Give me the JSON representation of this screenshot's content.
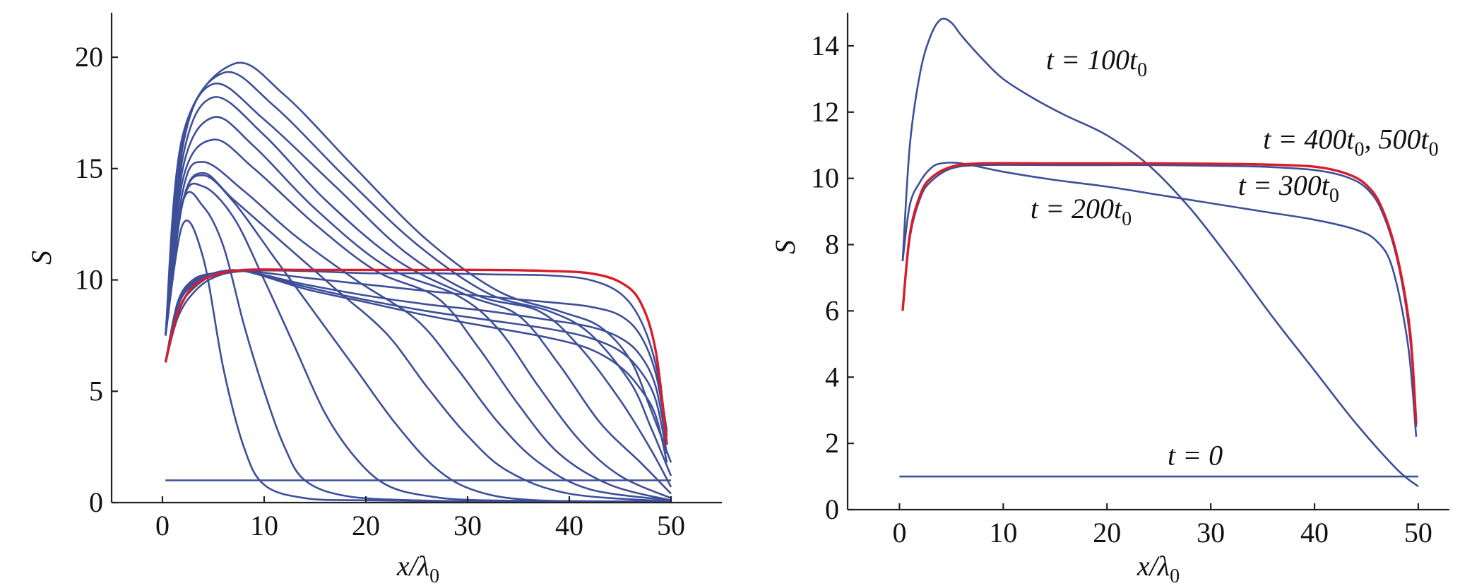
{
  "chart_data": [
    {
      "type": "line",
      "title": "",
      "xlabel": "x/λ0",
      "ylabel": "S",
      "xlim": [
        -5,
        55
      ],
      "ylim": [
        0,
        22
      ],
      "xticks": [
        0,
        10,
        20,
        30,
        40,
        50
      ],
      "yticks": [
        0,
        5,
        10,
        15,
        20
      ],
      "grid": false,
      "legend": "none",
      "colors": {
        "series": "#3d4f98",
        "steady": "#d81c2a"
      },
      "note_series": "Family of S(x) profiles at successive times; the red curve is the final steady profile",
      "series": [
        {
          "name": "",
          "x": [
            0.3,
            2,
            5,
            10,
            20,
            30,
            40,
            45,
            47,
            49,
            50
          ],
          "y": [
            1,
            1,
            1,
            1,
            1,
            1,
            1,
            1,
            1,
            1,
            1
          ]
        },
        {
          "name": "",
          "x": [
            0.3,
            2,
            4,
            6,
            8,
            10,
            14,
            20,
            30,
            40,
            50
          ],
          "y": [
            7.5,
            12.5,
            11,
            6,
            2.5,
            0.8,
            0.2,
            0.1,
            0.05,
            0.05,
            0.05
          ]
        },
        {
          "name": "",
          "x": [
            0.3,
            2,
            4,
            6,
            8,
            10,
            12,
            14,
            18,
            25,
            35,
            50
          ],
          "y": [
            7.5,
            13.5,
            13.3,
            11.5,
            8,
            5,
            2.5,
            1,
            0.3,
            0.1,
            0.05,
            0.05
          ]
        },
        {
          "name": "",
          "x": [
            0.3,
            2,
            4,
            7,
            10,
            13,
            16,
            19,
            22,
            26,
            32,
            50
          ],
          "y": [
            7.5,
            13.5,
            14.2,
            12.8,
            10,
            7,
            4,
            2,
            0.8,
            0.3,
            0.1,
            0.05
          ]
        },
        {
          "name": "",
          "x": [
            0.3,
            2,
            4,
            7,
            11,
            15,
            19,
            23,
            27,
            31,
            37,
            50
          ],
          "y": [
            7.5,
            13.5,
            14.7,
            13.5,
            11,
            8.5,
            6,
            3.5,
            1.5,
            0.5,
            0.1,
            0.05
          ]
        },
        {
          "name": "",
          "x": [
            0.3,
            2,
            4,
            7,
            12,
            17,
            22,
            26,
            30,
            34,
            40,
            50
          ],
          "y": [
            7.5,
            13.5,
            14.8,
            13.6,
            11.6,
            9.6,
            7.6,
            5.2,
            3,
            1.4,
            0.4,
            0.05
          ]
        },
        {
          "name": "",
          "x": [
            0.3,
            2,
            4,
            8,
            13,
            19,
            25,
            29,
            33,
            37,
            42,
            50
          ],
          "y": [
            7.5,
            14,
            15.3,
            14,
            12,
            10,
            8.2,
            6,
            3.6,
            1.8,
            0.6,
            0.1
          ]
        },
        {
          "name": "",
          "x": [
            0.3,
            2,
            5,
            9,
            15,
            21,
            27,
            31,
            35,
            39,
            44,
            50
          ],
          "y": [
            7.5,
            14.5,
            16.3,
            15,
            12.5,
            10.4,
            9.2,
            7,
            4.4,
            2.2,
            0.8,
            0.1
          ]
        },
        {
          "name": "",
          "x": [
            0.3,
            2,
            5,
            9,
            15,
            22,
            29,
            33,
            37,
            41,
            45,
            50
          ],
          "y": [
            7.5,
            15,
            17.3,
            16,
            13.2,
            10.6,
            9.3,
            7.8,
            5.2,
            2.8,
            1.2,
            0.2
          ]
        },
        {
          "name": "",
          "x": [
            0.3,
            2,
            5,
            10,
            16,
            23,
            30,
            35,
            39,
            43,
            47,
            50
          ],
          "y": [
            7.5,
            15.5,
            18.2,
            16.5,
            13.6,
            10.9,
            9.3,
            8.4,
            6.2,
            3.6,
            1.8,
            0.4
          ]
        },
        {
          "name": "",
          "x": [
            0.3,
            2,
            5,
            10,
            17,
            24,
            31,
            37,
            41,
            45,
            48,
            50
          ],
          "y": [
            7.5,
            16,
            18.8,
            17.2,
            14.2,
            11.2,
            9.3,
            8.6,
            7,
            4.6,
            2.4,
            0.7
          ]
        },
        {
          "name": "",
          "x": [
            0.3,
            2,
            6,
            11,
            18,
            25,
            32,
            38,
            42,
            46,
            48,
            50
          ],
          "y": [
            7.5,
            16.3,
            19.3,
            17.8,
            14.6,
            11.6,
            9.4,
            8.6,
            7.6,
            5.4,
            3.4,
            1.2
          ]
        },
        {
          "name": "",
          "x": [
            0.3,
            2,
            7,
            12,
            19,
            26,
            33,
            39,
            43,
            46,
            48,
            50
          ],
          "y": [
            7.5,
            16.5,
            19.7,
            18.3,
            15,
            11.8,
            9.5,
            8.6,
            7.9,
            6.4,
            4.2,
            1.8
          ]
        },
        {
          "name": "",
          "x": [
            0.3,
            1.5,
            3,
            5,
            8,
            14,
            20,
            26,
            32,
            38,
            42,
            45,
            47,
            48.5,
            49.6
          ],
          "y": [
            6.3,
            8.3,
            9.4,
            10.1,
            10.4,
            10.4,
            10.3,
            10.3,
            10.25,
            10.2,
            10,
            9.4,
            8.2,
            6.2,
            3.2
          ]
        },
        {
          "name": "",
          "x": [
            0.3,
            1.5,
            3,
            5,
            8,
            14,
            20,
            26,
            32,
            38,
            42,
            45,
            47,
            48.5,
            49.6
          ],
          "y": [
            6.3,
            8.6,
            9.6,
            10.2,
            10.4,
            10.1,
            9.8,
            9.5,
            9.25,
            9,
            8.8,
            8.4,
            7.5,
            5.8,
            3
          ]
        },
        {
          "name": "",
          "x": [
            0.3,
            1.5,
            3,
            5,
            8,
            14,
            20,
            26,
            32,
            38,
            42,
            45,
            47,
            48.5,
            49.6
          ],
          "y": [
            6.3,
            8.8,
            9.8,
            10.3,
            10.4,
            9.8,
            9.3,
            8.9,
            8.6,
            8.2,
            7.9,
            7.4,
            6.6,
            5.2,
            2.6
          ]
        },
        {
          "name": "",
          "x": [
            0.3,
            1.5,
            3,
            5,
            8,
            14,
            20,
            26,
            32,
            38,
            42,
            45,
            47,
            48.5,
            49.6
          ],
          "y": [
            6.3,
            8.9,
            9.9,
            10.3,
            10.4,
            9.7,
            9.1,
            8.6,
            8.2,
            7.8,
            7.4,
            6.8,
            5.9,
            4.6,
            2.2
          ]
        },
        {
          "name": "",
          "x": [
            0.3,
            1.5,
            3,
            5,
            8,
            14,
            20,
            26,
            32,
            38,
            42,
            45,
            47,
            48.5,
            49.6
          ],
          "y": [
            6.3,
            9,
            10,
            10.3,
            10.4,
            9.6,
            9,
            8.4,
            7.9,
            7.4,
            6.9,
            6.1,
            5.1,
            3.9,
            1.8
          ]
        },
        {
          "name": "",
          "x": [
            0.3,
            1.5,
            3,
            5,
            8,
            14,
            20,
            26,
            32,
            38,
            42,
            45,
            47,
            48.5,
            49.6
          ],
          "y": [
            6.3,
            8.5,
            9.7,
            10.2,
            10.45,
            10.45,
            10.45,
            10.45,
            10.45,
            10.4,
            10.3,
            9.9,
            9,
            6.8,
            2.6
          ]
        }
      ]
    },
    {
      "type": "line",
      "title": "",
      "xlabel": "x/λ0",
      "ylabel": "S",
      "xlim": [
        -5,
        53
      ],
      "ylim": [
        0,
        15
      ],
      "xticks": [
        0,
        10,
        20,
        30,
        40,
        50
      ],
      "yticks": [
        0,
        2,
        4,
        6,
        8,
        10,
        12,
        14
      ],
      "grid": false,
      "legend": "none",
      "colors": {
        "series": "#3d4f98",
        "steady": "#d81c2a"
      },
      "series": [
        {
          "name": "t = 0",
          "x": [
            0,
            10,
            20,
            30,
            40,
            50
          ],
          "y": [
            1,
            1,
            1,
            1,
            1,
            1
          ]
        },
        {
          "name": "t = 100t0",
          "x": [
            0.3,
            1,
            2,
            3,
            4,
            5,
            6,
            8,
            10,
            13,
            16,
            20,
            24,
            28,
            32,
            36,
            40,
            44,
            48,
            50
          ],
          "y": [
            7.5,
            11,
            13.2,
            14.3,
            14.8,
            14.7,
            14.3,
            13.6,
            13,
            12.4,
            11.9,
            11.3,
            10.4,
            9.1,
            7.5,
            5.8,
            4.2,
            2.6,
            1.2,
            0.7
          ]
        },
        {
          "name": "t = 200t0",
          "x": [
            0.3,
            1,
            2,
            3,
            4,
            6,
            10,
            15,
            20,
            25,
            30,
            35,
            40,
            44,
            46,
            47.5,
            49,
            49.8
          ],
          "y": [
            7.5,
            9.2,
            9.9,
            10.3,
            10.45,
            10.45,
            10.2,
            9.95,
            9.75,
            9.5,
            9.25,
            9,
            8.75,
            8.45,
            8.1,
            7.3,
            5,
            2.2
          ]
        },
        {
          "name": "t = 300t0",
          "x": [
            0.3,
            1,
            2,
            3,
            5,
            8,
            15,
            20,
            25,
            30,
            35,
            40,
            43,
            45,
            46.5,
            48,
            49.2,
            49.8
          ],
          "y": [
            6,
            8.2,
            9.4,
            9.9,
            10.3,
            10.4,
            10.4,
            10.4,
            10.4,
            10.38,
            10.35,
            10.25,
            10.05,
            9.7,
            9,
            7.5,
            5.2,
            2.5
          ]
        },
        {
          "name": "t = 400t0, 500t0",
          "x": [
            0.3,
            1,
            2,
            3,
            5,
            8,
            15,
            20,
            25,
            30,
            35,
            40,
            43,
            45,
            46.5,
            48,
            49.2,
            49.8
          ],
          "y": [
            6,
            8.3,
            9.5,
            10,
            10.35,
            10.45,
            10.45,
            10.45,
            10.45,
            10.44,
            10.42,
            10.35,
            10.15,
            9.8,
            9.1,
            7.6,
            5.4,
            2.6
          ]
        }
      ],
      "annotations": [
        {
          "text": "t = 100t0",
          "x": 19,
          "y": 13.3
        },
        {
          "text": "t = 400t0, 500t0",
          "x": 43.5,
          "y": 10.9
        },
        {
          "text": "t = 300t0",
          "x": 37.5,
          "y": 9.5
        },
        {
          "text": "t = 200t0",
          "x": 17.5,
          "y": 8.8
        },
        {
          "text": "t = 0",
          "x": 28.5,
          "y": 1.35
        }
      ]
    }
  ],
  "labels": {
    "left_xlabel": "x/λ",
    "left_xlabel_sub": "0",
    "left_ylabel": "S",
    "right_xlabel": "x/λ",
    "right_xlabel_sub": "0",
    "right_ylabel": "S",
    "ann_100": "t = 100t",
    "ann_100_sub": "0",
    "ann_400": "t = 400t",
    "ann_400_sub": "0",
    "ann_400_mid": ", 500t",
    "ann_400_sub2": "0",
    "ann_300": "t = 300t",
    "ann_300_sub": "0",
    "ann_200": "t = 200t",
    "ann_200_sub": "0",
    "ann_0": "t = 0"
  }
}
